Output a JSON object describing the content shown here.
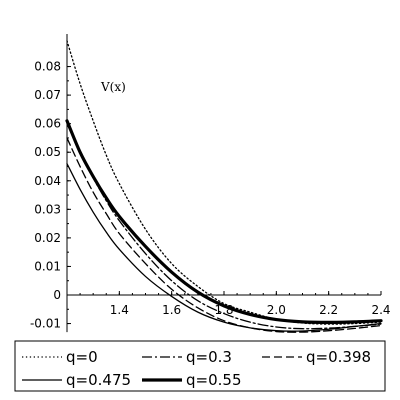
{
  "chart_data": {
    "type": "line",
    "title": "",
    "xlabel": "",
    "ylabel": "",
    "xlim": [
      1.2,
      2.4
    ],
    "ylim": [
      -0.013,
      0.09
    ],
    "grid": false,
    "legend_placement": "bottom",
    "x_ticks": [
      "1.4",
      "1.6",
      "1.8",
      "2.0",
      "2.2",
      "2.4"
    ],
    "y_ticks": [
      "-0.01",
      "0",
      "0.01",
      "0.02",
      "0.03",
      "0.04",
      "0.05",
      "0.06",
      "0.07",
      "0.08"
    ],
    "annotation": {
      "text": "V(x)",
      "x": 1.33,
      "y": 0.0715
    },
    "x": [
      1.2,
      1.25,
      1.3,
      1.35,
      1.4,
      1.5,
      1.6,
      1.7,
      1.8,
      1.9,
      2.0,
      2.1,
      2.2,
      2.3,
      2.4
    ],
    "series": [
      {
        "name": "q=0",
        "style": "dotted",
        "color": "#000000",
        "values": [
          0.089,
          0.074,
          0.061,
          0.049,
          0.039,
          0.023,
          0.011,
          0.003,
          -0.003,
          -0.006,
          -0.0085,
          -0.0098,
          -0.0102,
          -0.01,
          -0.0095
        ]
      },
      {
        "name": "q=0.3",
        "style": "dashdot",
        "color": "#000000",
        "values": [
          0.06,
          0.05,
          0.041,
          0.033,
          0.026,
          0.0145,
          0.005,
          -0.002,
          -0.0065,
          -0.0095,
          -0.0112,
          -0.0118,
          -0.0116,
          -0.011,
          -0.0102
        ]
      },
      {
        "name": "q=0.398",
        "style": "dashed",
        "color": "#000000",
        "values": [
          0.055,
          0.045,
          0.036,
          0.0285,
          0.0215,
          0.011,
          0.002,
          -0.0045,
          -0.009,
          -0.0115,
          -0.0128,
          -0.013,
          -0.0125,
          -0.0117,
          -0.0107
        ]
      },
      {
        "name": "q=0.475",
        "style": "solid",
        "color": "#000000",
        "values": [
          0.046,
          0.037,
          0.029,
          0.022,
          0.016,
          0.0065,
          -0.0005,
          -0.006,
          -0.0095,
          -0.0115,
          -0.0125,
          -0.0126,
          -0.012,
          -0.011,
          -0.01
        ]
      },
      {
        "name": "q=0.55",
        "style": "thick",
        "color": "#000000",
        "values": [
          0.061,
          0.05,
          0.0415,
          0.034,
          0.0275,
          0.017,
          0.008,
          0.001,
          -0.0038,
          -0.0068,
          -0.0086,
          -0.0094,
          -0.0096,
          -0.0094,
          -0.009
        ]
      }
    ]
  }
}
